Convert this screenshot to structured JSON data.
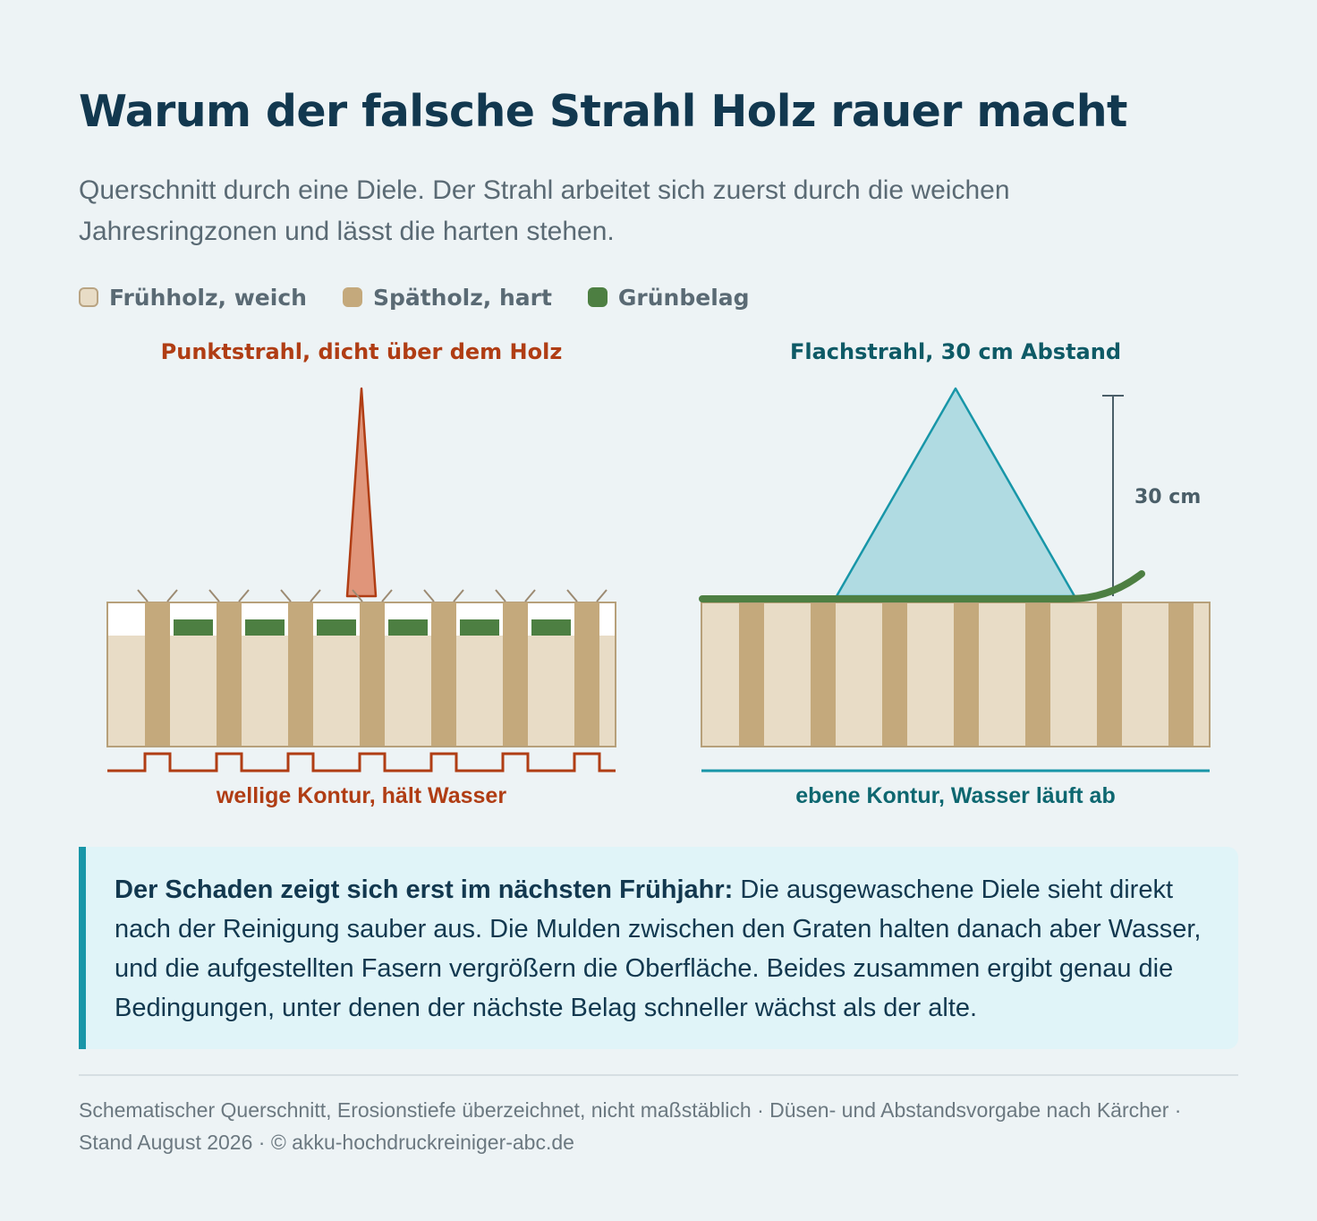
{
  "title": "Warum der falsche Strahl Holz rauer macht",
  "subtitle": "Querschnitt durch eine Diele. Der Strahl arbeitet sich zuerst durch die weichen Jahresringzonen und lässt die harten stehen.",
  "legend": [
    {
      "label": "Frühholz, weich",
      "color": "#e8dcc6"
    },
    {
      "label": "Spätholz, hart",
      "color": "#c4a97c"
    },
    {
      "label": "Grünbelag",
      "color": "#4d7f42"
    }
  ],
  "left_panel": {
    "heading": "Punktstrahl, dicht über dem Holz",
    "caption": "wellige Kontur, hält Wasser",
    "accent": "#b03d14"
  },
  "right_panel": {
    "heading": "Flachstrahl, 30 cm Abstand",
    "caption": "ebene Kontur, Wasser läuft ab",
    "distance_label": "30 cm",
    "accent": "#0e6770"
  },
  "callout": {
    "lead": "Der Schaden zeigt sich erst im nächsten Frühjahr:",
    "text": " Die ausgewaschene Diele sieht direkt nach der Reinigung sauber aus. Die Mulden zwischen den Graten halten danach aber Wasser, und die aufgestellten Fasern vergrößern die Oberfläche. Beides zusammen ergibt genau die Bedingungen, unter denen der nächste Belag schneller wächst als der alte."
  },
  "footer": "Schematischer Querschnitt, Erosionstiefe überzeichnet, nicht maßstäblich · Düsen- und Abstandsvorgabe nach Kärcher · Stand August 2026 · © akku-hochdruckreiniger-abc.de"
}
